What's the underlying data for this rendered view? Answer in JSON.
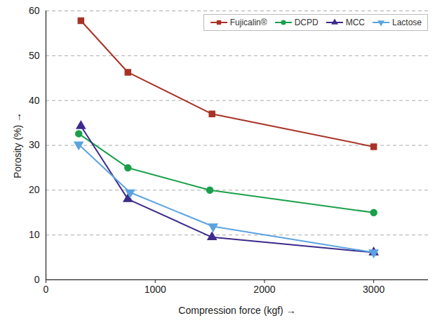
{
  "chart_data": {
    "type": "line",
    "xlabel": "Compression force (kgf)",
    "ylabel": "Porosity (%)",
    "xlim": [
      0,
      3500
    ],
    "xticks": [
      0,
      1000,
      2000,
      3000
    ],
    "ylim": [
      0,
      60
    ],
    "yticks": [
      0,
      10,
      20,
      30,
      40,
      50,
      60
    ],
    "grid": true,
    "legend": "top-right",
    "series": [
      {
        "name": "Fujicalin®",
        "color": "#a83226",
        "marker": "square",
        "x": [
          320,
          750,
          1520,
          3000
        ],
        "values": [
          57.8,
          46.3,
          37.0,
          29.7
        ]
      },
      {
        "name": "DCPD",
        "color": "#1aa04a",
        "marker": "circle",
        "x": [
          300,
          750,
          1500,
          3000
        ],
        "values": [
          32.6,
          25.0,
          20.0,
          15.0
        ]
      },
      {
        "name": "MCC",
        "color": "#3d2a8a",
        "marker": "triangle-up",
        "x": [
          320,
          750,
          1520,
          3000
        ],
        "values": [
          34.3,
          18.0,
          9.5,
          6.1
        ]
      },
      {
        "name": "Lactose",
        "color": "#5ba3e0",
        "marker": "triangle-down",
        "x": [
          300,
          770,
          1530,
          3000
        ],
        "values": [
          30.2,
          19.5,
          11.9,
          6.1
        ]
      }
    ]
  }
}
